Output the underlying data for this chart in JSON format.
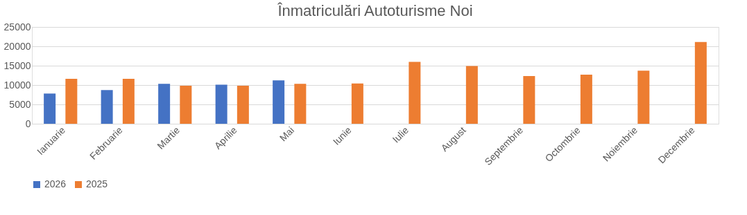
{
  "chart_data": {
    "type": "bar",
    "title": "Înmatriculări Autoturisme Noi",
    "categories": [
      "Ianuarie",
      "Februarie",
      "Martie",
      "Aprilie",
      "Mai",
      "Iunie",
      "Iulie",
      "August",
      "Septembrie",
      "Octombrie",
      "Noiembrie",
      "Decembrie"
    ],
    "series": [
      {
        "name": "2026",
        "color": "#4472c4",
        "values": [
          7800,
          8700,
          10300,
          10100,
          11200,
          null,
          null,
          null,
          null,
          null,
          null,
          null
        ]
      },
      {
        "name": "2025",
        "color": "#ed7d31",
        "values": [
          11600,
          11600,
          9800,
          9800,
          10300,
          10400,
          16000,
          14900,
          12300,
          12700,
          13700,
          21100
        ]
      }
    ],
    "ylim": [
      0,
      25000
    ],
    "yticks": [
      0,
      5000,
      10000,
      15000,
      20000,
      25000
    ],
    "grid": "y",
    "legend": "bottom"
  }
}
